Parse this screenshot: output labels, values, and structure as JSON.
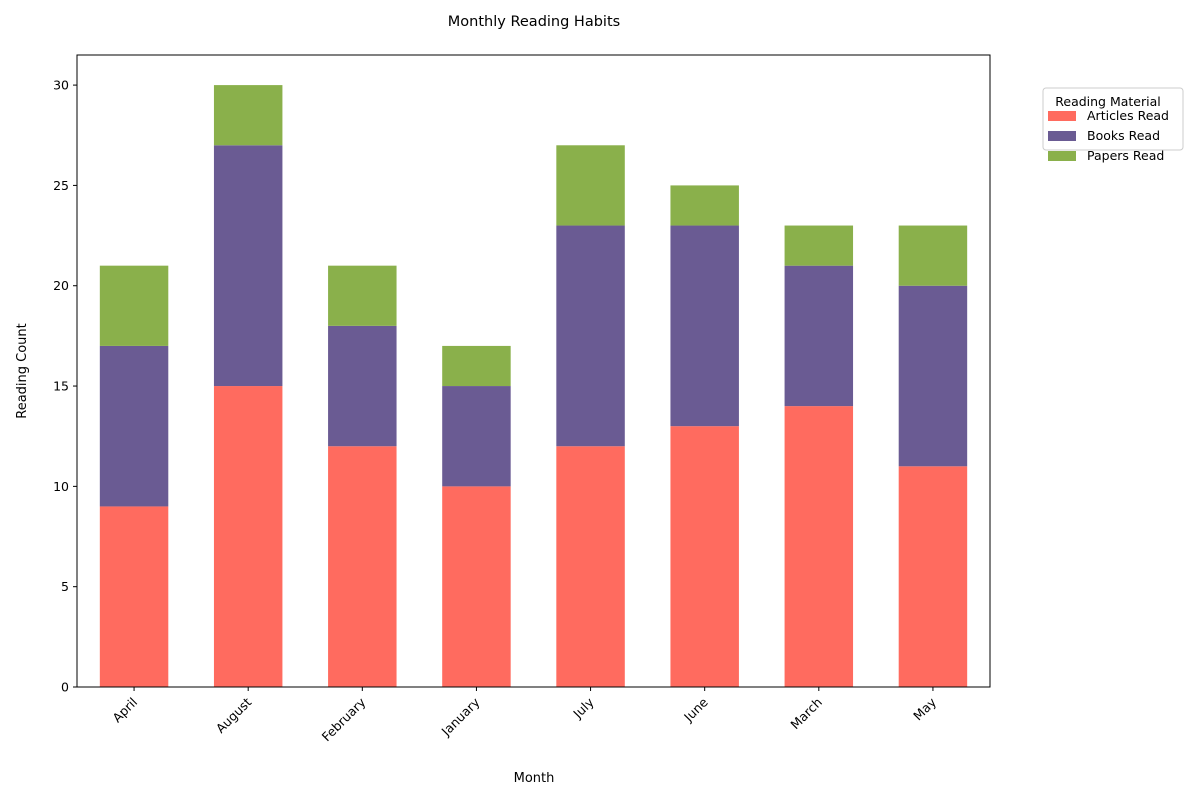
{
  "chart_data": {
    "type": "bar",
    "stacked": true,
    "title": "Monthly Reading Habits",
    "xlabel": "Month",
    "ylabel": "Reading Count",
    "ylim": [
      0,
      31.5
    ],
    "yticks": [
      0,
      5,
      10,
      15,
      20,
      25,
      30
    ],
    "grid": false,
    "legend_title": "Reading Material",
    "legend_position": "outside-top-right",
    "categories": [
      "April",
      "August",
      "February",
      "January",
      "July",
      "June",
      "March",
      "May"
    ],
    "series": [
      {
        "name": "Articles Read",
        "color": "#ff6b5f",
        "values": [
          9,
          15,
          12,
          10,
          12,
          13,
          14,
          11
        ]
      },
      {
        "name": "Books Read",
        "color": "#6a5b93",
        "values": [
          8,
          12,
          6,
          5,
          11,
          10,
          7,
          9
        ]
      },
      {
        "name": "Papers Read",
        "color": "#8ab04b",
        "values": [
          4,
          3,
          3,
          2,
          4,
          2,
          2,
          3
        ]
      }
    ]
  }
}
